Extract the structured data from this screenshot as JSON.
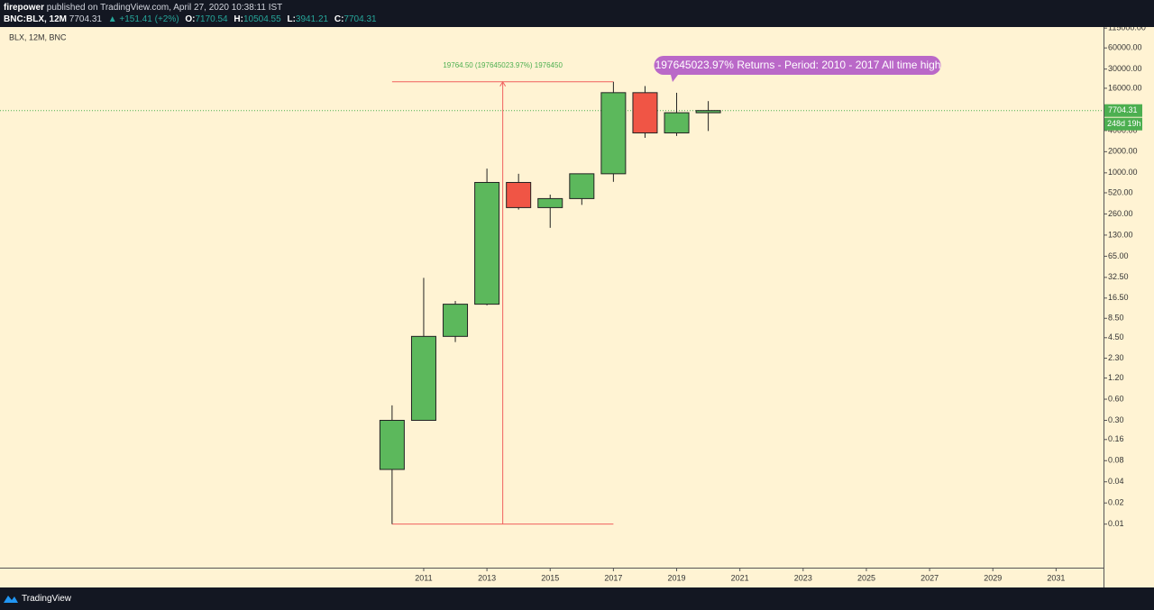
{
  "header": {
    "author": "firepower",
    "published": "published on TradingView.com, April 27, 2020 10:38:11 IST",
    "symbol": "BNC:BLX, 12M",
    "price": "7704.31",
    "change": "▲ +151.41 (+2%)",
    "o_label": "O:",
    "o": "7170.54",
    "h_label": "H:",
    "h": "10504.55",
    "l_label": "L:",
    "l": "3941.21",
    "c_label": "C:",
    "c": "7704.31"
  },
  "chart_data": {
    "type": "candlestick",
    "legend_text": "BLX, 12M, BNC",
    "x": [
      2010,
      2011,
      2012,
      2013,
      2014,
      2015,
      2016,
      2017,
      2018,
      2019,
      2020
    ],
    "open": [
      0.06,
      0.3,
      4.7,
      13.5,
      730,
      320,
      430,
      970,
      13850,
      3700,
      7170.54
    ],
    "high": [
      0.49,
      32,
      15,
      1150,
      970,
      490,
      970,
      19764.5,
      17200,
      13800,
      10504.55
    ],
    "low": [
      0.01,
      0.3,
      3.9,
      13,
      300,
      165,
      350,
      745,
      3150,
      3350,
      3941.21
    ],
    "close": [
      0.3,
      4.7,
      13.5,
      730,
      320,
      430,
      970,
      13850,
      3700,
      7170.54,
      7704.31
    ],
    "up_color": "#5cb85c",
    "down_color": "#f05545",
    "log_scale": true,
    "ylim": [
      0.0024,
      119000
    ],
    "yticks": [
      {
        "value": 115000,
        "label": "115000.00"
      },
      {
        "value": 60000,
        "label": "60000.00"
      },
      {
        "value": 30000,
        "label": "30000.00"
      },
      {
        "value": 16000,
        "label": "16000.00"
      },
      {
        "value": 4000,
        "label": "4000.00"
      },
      {
        "value": 2000,
        "label": "2000.00"
      },
      {
        "value": 1000,
        "label": "1000.00"
      },
      {
        "value": 520,
        "label": "520.00"
      },
      {
        "value": 260,
        "label": "260.00"
      },
      {
        "value": 130,
        "label": "130.00"
      },
      {
        "value": 65,
        "label": "65.00"
      },
      {
        "value": 32.5,
        "label": "32.50"
      },
      {
        "value": 16.5,
        "label": "16.50"
      },
      {
        "value": 8.5,
        "label": "8.50"
      },
      {
        "value": 4.5,
        "label": "4.50"
      },
      {
        "value": 2.3,
        "label": "2.30"
      },
      {
        "value": 1.2,
        "label": "1.20"
      },
      {
        "value": 0.6,
        "label": "0.60"
      },
      {
        "value": 0.3,
        "label": "0.30"
      },
      {
        "value": 0.16,
        "label": "0.16"
      },
      {
        "value": 0.08,
        "label": "0.08"
      },
      {
        "value": 0.04,
        "label": "0.04"
      },
      {
        "value": 0.02,
        "label": "0.02"
      },
      {
        "value": 0.01,
        "label": "0.01"
      }
    ],
    "xlim": [
      1997.6,
      2032.5
    ],
    "xticks": [
      2011,
      2013,
      2015,
      2017,
      2019,
      2021,
      2023,
      2025,
      2027,
      2029,
      2031
    ],
    "measure_label": "19764.50 (197645023.97%) 1976450",
    "measure_color": "#f0605d",
    "callout": "197645023.97% Returns - Period: 2010 - 2017 All time high",
    "callout_color": "#ba68c8",
    "countdown": "248d 19h",
    "price_line_color": "#4caf50"
  },
  "footer": {
    "brand": "TradingView"
  }
}
